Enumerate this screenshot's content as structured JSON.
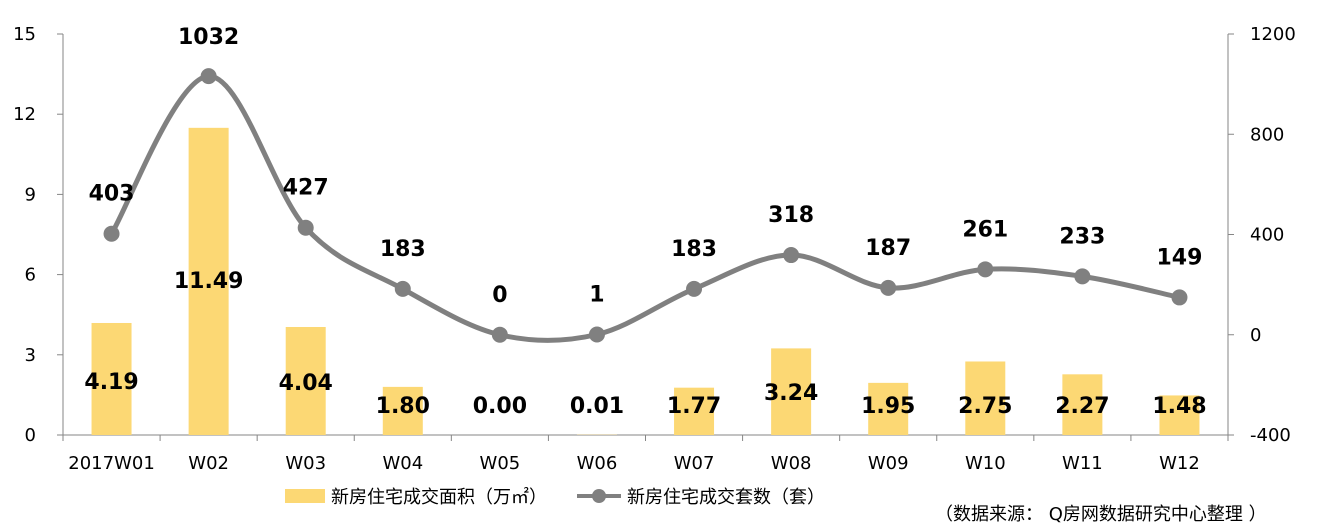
{
  "chart_data": {
    "type": "bar",
    "categories": [
      "2017W01",
      "W02",
      "W03",
      "W04",
      "W05",
      "W06",
      "W07",
      "W08",
      "W09",
      "W10",
      "W11",
      "W12"
    ],
    "series": [
      {
        "name": "新房住宅成交面积（万㎡）",
        "type": "bar",
        "axis": "left",
        "color": "#FCD874",
        "values": [
          4.19,
          11.49,
          4.04,
          1.8,
          0.0,
          0.01,
          1.77,
          3.24,
          1.95,
          2.75,
          2.27,
          1.48
        ],
        "labels": [
          "4.19",
          "11.49",
          "4.04",
          "1.80",
          "0.00",
          "0.01",
          "1.77",
          "3.24",
          "1.95",
          "2.75",
          "2.27",
          "1.48"
        ]
      },
      {
        "name": "新房住宅成交套数（套）",
        "type": "line",
        "axis": "right",
        "color": "#808080",
        "values": [
          403,
          1032,
          427,
          183,
          0,
          1,
          183,
          318,
          187,
          261,
          233,
          149
        ],
        "labels": [
          "403",
          "1032",
          "427",
          "183",
          "0",
          "1",
          "183",
          "318",
          "187",
          "261",
          "233",
          "149"
        ]
      }
    ],
    "y_left": {
      "ylim": [
        0,
        15
      ],
      "ticks": [
        "0",
        "3",
        "6",
        "9",
        "12",
        "15"
      ]
    },
    "y_right": {
      "ylim": [
        -400,
        1200
      ],
      "ticks": [
        "-400",
        "0",
        "400",
        "800",
        "1200"
      ]
    },
    "legend": {
      "position": "bottom"
    },
    "grid": false
  },
  "source_note": "（数据来源： Q房网数据研究中心整理 ）"
}
